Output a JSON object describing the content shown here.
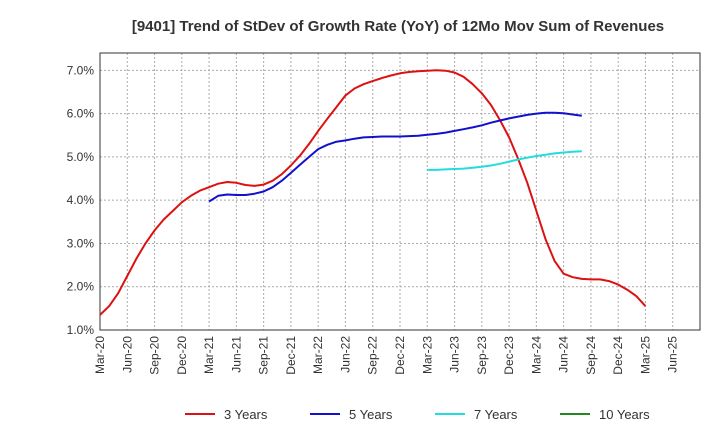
{
  "chart_data": {
    "type": "line",
    "title": "[9401]  Trend of StDev of Growth Rate (YoY) of 12Mo Mov Sum of Revenues",
    "xlabel": "",
    "ylabel": "",
    "ylim": [
      1.0,
      7.4
    ],
    "yticks": [
      1.0,
      2.0,
      3.0,
      4.0,
      5.0,
      6.0,
      7.0
    ],
    "ytick_labels": [
      "1.0%",
      "2.0%",
      "3.0%",
      "4.0%",
      "5.0%",
      "6.0%",
      "7.0%"
    ],
    "x_categories": [
      "Mar-20",
      "Jun-20",
      "Sep-20",
      "Dec-20",
      "Mar-21",
      "Jun-21",
      "Sep-21",
      "Dec-21",
      "Mar-22",
      "Jun-22",
      "Sep-22",
      "Dec-22",
      "Mar-23",
      "Jun-23",
      "Sep-23",
      "Dec-23",
      "Mar-24",
      "Jun-24",
      "Sep-24",
      "Dec-24",
      "Mar-25",
      "Jun-25"
    ],
    "grid": true,
    "legend_position": "bottom",
    "series": [
      {
        "name": "3 Years",
        "color": "#dd1111",
        "start_index": 0,
        "values": [
          1.35,
          1.55,
          1.85,
          2.25,
          2.65,
          3.0,
          3.3,
          3.55,
          3.75,
          3.95,
          4.1,
          4.22,
          4.3,
          4.38,
          4.42,
          4.4,
          4.35,
          4.33,
          4.36,
          4.45,
          4.6,
          4.8,
          5.03,
          5.3,
          5.6,
          5.88,
          6.15,
          6.42,
          6.58,
          6.68,
          6.75,
          6.82,
          6.88,
          6.93,
          6.96,
          6.98,
          6.99,
          7.0,
          6.99,
          6.95,
          6.85,
          6.68,
          6.47,
          6.2,
          5.85,
          5.45,
          4.95,
          4.4,
          3.75,
          3.1,
          2.6,
          2.3,
          2.22,
          2.18,
          2.17,
          2.17,
          2.13,
          2.05,
          1.93,
          1.78,
          1.55
        ]
      },
      {
        "name": "5 Years",
        "color": "#1111cc",
        "start_index": 12,
        "values": [
          3.97,
          4.1,
          4.13,
          4.12,
          4.12,
          4.15,
          4.2,
          4.3,
          4.45,
          4.63,
          4.82,
          5.0,
          5.18,
          5.28,
          5.35,
          5.38,
          5.42,
          5.45,
          5.46,
          5.47,
          5.47,
          5.47,
          5.48,
          5.49,
          5.51,
          5.53,
          5.56,
          5.6,
          5.64,
          5.68,
          5.73,
          5.79,
          5.84,
          5.89,
          5.93,
          5.97,
          6.0,
          6.02,
          6.02,
          6.01,
          5.98,
          5.95
        ]
      },
      {
        "name": "7 Years",
        "color": "#22dddd",
        "start_index": 36,
        "values": [
          4.7,
          4.7,
          4.71,
          4.72,
          4.73,
          4.75,
          4.77,
          4.8,
          4.84,
          4.89,
          4.94,
          4.98,
          5.02,
          5.05,
          5.08,
          5.1,
          5.12,
          5.13
        ]
      },
      {
        "name": "10 Years",
        "color": "#228822",
        "start_index": 0,
        "values": []
      }
    ]
  }
}
